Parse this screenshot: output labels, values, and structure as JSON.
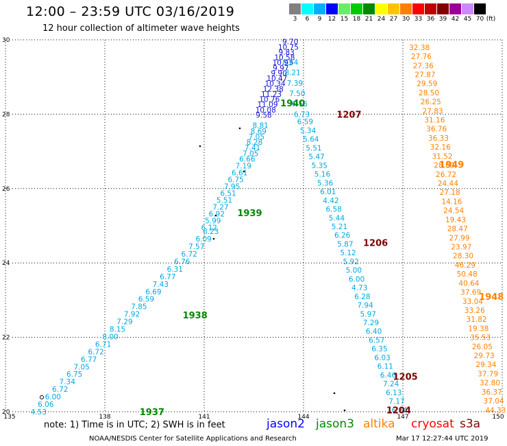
{
  "header": {
    "title": "12:00 – 23:59 UTC 03/16/2019",
    "subtitle": "12 hour collection of altimeter wave heights"
  },
  "color_scale": {
    "unit_label": "(ft)",
    "bins": [
      {
        "label": "3",
        "color": "#808080"
      },
      {
        "label": "6",
        "color": "#00ffff"
      },
      {
        "label": "9",
        "color": "#00b0ff"
      },
      {
        "label": "12",
        "color": "#0000ff"
      },
      {
        "label": "15",
        "color": "#66ee66"
      },
      {
        "label": "18",
        "color": "#00cc00"
      },
      {
        "label": "21",
        "color": "#008800"
      },
      {
        "label": "24",
        "color": "#ffff00"
      },
      {
        "label": "27",
        "color": "#ffc400"
      },
      {
        "label": "30",
        "color": "#ff8000"
      },
      {
        "label": "33",
        "color": "#ff0000"
      },
      {
        "label": "36",
        "color": "#c00000"
      },
      {
        "label": "39",
        "color": "#800000"
      },
      {
        "label": "42",
        "color": "#990099"
      },
      {
        "label": "45",
        "color": "#cc88ff"
      },
      {
        "label": "70",
        "color": "#000000"
      }
    ]
  },
  "map": {
    "lon_ticks": [
      "135",
      "138",
      "141",
      "144",
      "147",
      "150"
    ],
    "lat_ticks": [
      "20",
      "22",
      "24",
      "26",
      "28",
      "30"
    ],
    "lon_range": [
      135,
      150
    ],
    "lat_range": [
      20,
      30
    ]
  },
  "tracks": [
    {
      "id": "pass-west",
      "color": "#00a8e0",
      "lon_start": 136.0,
      "lat_start": 20.0,
      "lon_end": 141.2,
      "lat_end": 24.85,
      "values": [
        "4.53",
        "6.06",
        "6.00",
        "6.72",
        "7.34",
        "6.75",
        "7.05",
        "6.77",
        "6.72",
        "6.71",
        "8.00",
        "8.15",
        "7.29",
        "7.92",
        "7.85",
        "6.59",
        "6.69",
        "7.43",
        "6.77",
        "6.31",
        "6.76",
        "6.72",
        "7.57",
        "6.09",
        "6.23"
      ]
    },
    {
      "id": "pass-west-mid",
      "color": "#00a8e0",
      "lon_start": 141.15,
      "lat_start": 24.95,
      "lon_end": 142.3,
      "lat_end": 26.8,
      "values": [
        "6.12",
        "5.99",
        "6.92",
        "7.27",
        "5.51",
        "6.51",
        "7.95",
        "6.75",
        "6.61",
        "7.19",
        "6.66"
      ]
    },
    {
      "id": "pass-west-upper",
      "color": "#00a8e0",
      "lon_start": 142.4,
      "lat_start": 26.95,
      "lon_end": 142.7,
      "lat_end": 27.7,
      "values": [
        "7.05",
        "7.41",
        "8.28",
        "7.05",
        "8.69",
        "8.81"
      ]
    },
    {
      "id": "pass-west-top",
      "color": "#1010d0",
      "lon_start": 142.8,
      "lat_start": 27.98,
      "lon_end": 143.6,
      "lat_end": 29.95,
      "values": [
        "9.58",
        "10.08",
        "11.09",
        "10.76",
        "11.23",
        "12.38",
        "10.34",
        "10.47",
        "9.90",
        "9.97",
        "10.93",
        "10.58",
        "9.83",
        "10.75",
        "9.70"
      ]
    },
    {
      "id": "pass-east-top",
      "color": "#00a8e0",
      "lon_start": 143.95,
      "lat_start": 28.0,
      "lon_end": 143.6,
      "lat_end": 29.4,
      "values": [
        "6.73",
        "6.56",
        "7.50",
        "7.39",
        "8.21",
        "8.64"
      ]
    },
    {
      "id": "pass-east",
      "color": "#00a8e0",
      "lon_start": 144.05,
      "lat_start": 27.8,
      "lon_end": 146.9,
      "lat_end": 20.05,
      "values": [
        "6.59",
        "5.34",
        "5.64",
        "5.51",
        "5.47",
        "5.35",
        "5.16",
        "5.36",
        "6.01",
        "4.42",
        "6.58",
        "5.44",
        "5.21",
        "6.26",
        "5.87",
        "5.12",
        "5.92",
        "5.00",
        "6.00",
        "4.73",
        "6.28",
        "7.94",
        "5.97",
        "7.29",
        "6.40",
        "6.57",
        "6.35",
        "6.03",
        "6.11",
        "6.46",
        "7.24",
        "6.13",
        "7.17",
        "6.84"
      ]
    },
    {
      "id": "pass-cryosat",
      "color": "#ff8000",
      "lon_start": 147.5,
      "lat_start": 29.8,
      "lon_end": 149.8,
      "lat_end": 20.05,
      "values": [
        "32.38",
        "27.76",
        "27.36",
        "27.87",
        "29.59",
        "28.50",
        "26.25",
        "27.83",
        "31.16",
        "36.76",
        "36.33",
        "32.16",
        "31.52",
        "28.60",
        "26.72",
        "24.44",
        "27.18",
        "14.16",
        "24.54",
        "19.43",
        "28.47",
        "27.99",
        "23.97",
        "28.30",
        "46.29",
        "50.48",
        "40.64",
        "37.69",
        "33.04",
        "33.26",
        "31.82",
        "19.38",
        "35.53",
        "26.05",
        "29.73",
        "29.34",
        "37.79",
        "32.80",
        "36.37",
        "37.04",
        "44.33"
      ]
    }
  ],
  "time_labels": [
    {
      "text": "1940",
      "color": "#008800",
      "lon": 143.3,
      "lat": 28.3
    },
    {
      "text": "1939",
      "color": "#008800",
      "lon": 142.0,
      "lat": 25.35
    },
    {
      "text": "1938",
      "color": "#008800",
      "lon": 140.35,
      "lat": 22.6
    },
    {
      "text": "1937",
      "color": "#008800",
      "lon": 139.05,
      "lat": 20.0
    },
    {
      "text": "1207",
      "color": "#800000",
      "lon": 145.0,
      "lat": 28.0
    },
    {
      "text": "1206",
      "color": "#800000",
      "lon": 145.8,
      "lat": 24.55
    },
    {
      "text": "1205",
      "color": "#800000",
      "lon": 146.7,
      "lat": 20.95
    },
    {
      "text": "1204",
      "color": "#800000",
      "lon": 146.5,
      "lat": 20.05
    },
    {
      "text": "1949",
      "color": "#ff8000",
      "lon": 148.1,
      "lat": 26.65
    },
    {
      "text": "1948",
      "color": "#ff8000",
      "lon": 149.3,
      "lat": 23.1
    }
  ],
  "footer": {
    "note": "note:  1) Time is in UTC;  2) SWH is in feet",
    "legend": [
      {
        "name": "jason2",
        "color": "#0000ff"
      },
      {
        "name": "jason3",
        "color": "#008800"
      },
      {
        "name": "altika",
        "color": "#ff8000"
      },
      {
        "name": "cryosat",
        "color": "#ff0000"
      },
      {
        "name": "s3a",
        "color": "#800000"
      }
    ],
    "credit": "NOAA/NESDIS Center for Satellite Applications and Research",
    "timestamp": "Mar 17 12:27:44 UTC 2019"
  }
}
